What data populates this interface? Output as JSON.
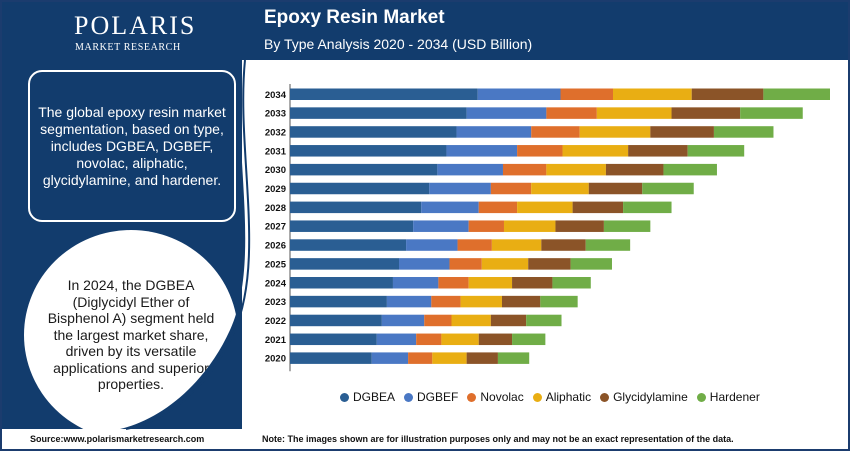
{
  "brand": {
    "name": "POLARIS",
    "tagline": "MARKET RESEARCH"
  },
  "header": {
    "title": "Epoxy Resin Market",
    "subtitle": "By Type Analysis 2020 - 2034 (USD Billion)"
  },
  "info_box": {
    "text": "The global epoxy resin market segmentation, based on type, includes DGBEA, DGBEF, novolac, aliphatic, glycidylamine, and hardener."
  },
  "highlight": {
    "text": "In 2024, the DGBEA (Diglycidyl Ether of Bisphenol A) segment held the largest market share, driven by its versatile applications and superior properties."
  },
  "footer": {
    "source": "Source:www.polarismarketresearch.com",
    "note": "Note: The images shown are for illustration purposes only and may not be an exact representation of the data."
  },
  "colors": {
    "navy": "#123c6d",
    "DGBEA": "#2a5e93",
    "DGBEF": "#4a78c4",
    "Novolac": "#df6f2c",
    "Aliphatic": "#e9ae13",
    "Glycidylamine": "#8b5428",
    "Hardener": "#70ad47"
  },
  "chart_data": {
    "type": "bar",
    "orientation": "horizontal",
    "stacked": true,
    "categories": [
      "2034",
      "2033",
      "2032",
      "2031",
      "2030",
      "2029",
      "2028",
      "2027",
      "2026",
      "2025",
      "2024",
      "2023",
      "2022",
      "2021",
      "2020"
    ],
    "series": [
      {
        "name": "DGBEA",
        "values": [
          186,
          175,
          165,
          155,
          146,
          138,
          130,
          122,
          115,
          108,
          102,
          96,
          91,
          86,
          81
        ]
      },
      {
        "name": "DGBEF",
        "values": [
          82,
          79,
          74,
          70,
          65,
          61,
          57,
          55,
          51,
          50,
          45,
          44,
          42,
          39,
          36
        ]
      },
      {
        "name": "Novolac",
        "values": [
          52,
          50,
          48,
          45,
          43,
          40,
          38,
          35,
          34,
          32,
          30,
          29,
          27,
          25,
          24
        ]
      },
      {
        "name": "Aliphatic",
        "values": [
          78,
          74,
          70,
          65,
          59,
          57,
          55,
          51,
          49,
          46,
          43,
          41,
          39,
          37,
          34
        ]
      },
      {
        "name": "Glycidylamine",
        "values": [
          71,
          68,
          63,
          59,
          57,
          53,
          50,
          48,
          44,
          42,
          40,
          38,
          35,
          33,
          31
        ]
      },
      {
        "name": "Hardener",
        "values": [
          66,
          62,
          59,
          56,
          53,
          51,
          48,
          46,
          44,
          41,
          38,
          37,
          35,
          33,
          31
        ]
      }
    ],
    "xlim": [
      0,
      535
    ],
    "grid": false,
    "legend": "bottom"
  }
}
